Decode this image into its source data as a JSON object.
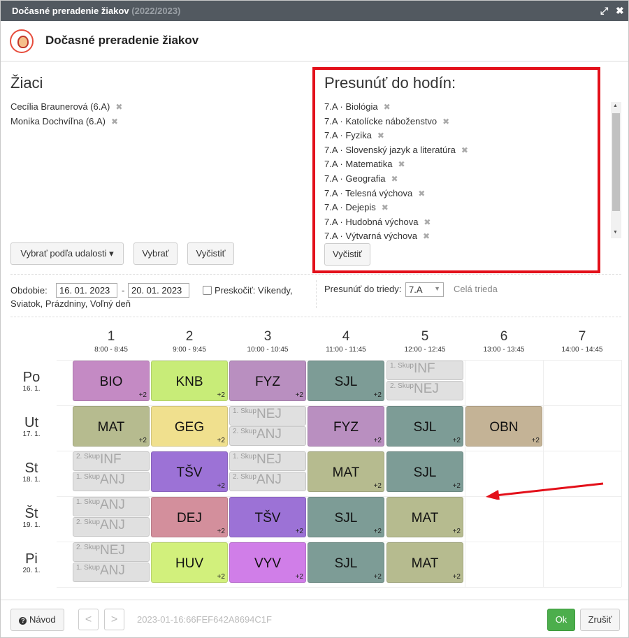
{
  "window": {
    "title": "Dočasné preradenie žiakov",
    "title_year": "(2022/2023)",
    "title_bold": "Dočasné preradenie žiakov"
  },
  "students": {
    "heading": "Žiaci",
    "items": [
      "Cecília Braunerová (6.A)",
      "Monika Dochvíľna (6.A)"
    ]
  },
  "buttons": {
    "choose_by_event": "Vybrať podľa udalosti ▾",
    "choose": "Vybrať",
    "clear": "Vyčistiť",
    "clear_right": "Vyčistiť"
  },
  "target": {
    "heading": "Presunúť do hodín:",
    "items": [
      "7.A · Biológia",
      "7.A · Katolícke náboženstvo",
      "7.A · Fyzika",
      "7.A · Slovenský jazyk a literatúra",
      "7.A · Matematika",
      "7.A · Geografia",
      "7.A · Telesná výchova",
      "7.A · Dejepis",
      "7.A · Hudobná výchova",
      "7.A · Výtvarná výchova"
    ]
  },
  "filters": {
    "period_label": "Obdobie:",
    "date_from": "16. 01. 2023",
    "date_sep": "-",
    "date_to": "20. 01. 2023",
    "skip_label": "Preskočiť: Víkendy,",
    "skip_label2": "Sviatok, Prázdniny, Voľný deň",
    "move_to_class_label": "Presunúť do triedy:",
    "class_value": "7.A",
    "whole_class": "Celá trieda"
  },
  "timetable": {
    "periods": [
      {
        "n": "1",
        "time": "8:00 - 8:45"
      },
      {
        "n": "2",
        "time": "9:00 - 9:45"
      },
      {
        "n": "3",
        "time": "10:00 - 10:45"
      },
      {
        "n": "4",
        "time": "11:00 - 11:45"
      },
      {
        "n": "5",
        "time": "12:00 - 12:45"
      },
      {
        "n": "6",
        "time": "13:00 - 13:45"
      },
      {
        "n": "7",
        "time": "14:00 - 14:45"
      }
    ],
    "days": [
      {
        "d": "Po",
        "date": "16. 1."
      },
      {
        "d": "Ut",
        "date": "17. 1."
      },
      {
        "d": "St",
        "date": "18. 1."
      },
      {
        "d": "Št",
        "date": "19. 1."
      },
      {
        "d": "Pi",
        "date": "20. 1."
      }
    ],
    "plus": "+2",
    "group1": "1. Skup",
    "group2": "2. Skup",
    "cells": {
      "po": [
        "BIO",
        "KNB",
        "FYZ",
        "SJL",
        "INF",
        "NEJ"
      ],
      "ut": [
        "MAT",
        "GEG",
        "NEJ",
        "ANJ",
        "FYZ",
        "SJL",
        "OBN"
      ],
      "st": [
        "INF",
        "ANJ",
        "TŠV",
        "NEJ",
        "ANJ",
        "MAT",
        "SJL"
      ],
      "stv": [
        "ANJ",
        "ANJ",
        "DEJ",
        "TŠV",
        "SJL",
        "MAT"
      ],
      "pi": [
        "NEJ",
        "ANJ",
        "HUV",
        "VYV",
        "SJL",
        "MAT"
      ]
    }
  },
  "footer": {
    "help": "Návod",
    "prev": "<",
    "next": ">",
    "code": "2023-01-16:66FEF642A8694C1F",
    "ok": "Ok",
    "cancel": "Zrušiť"
  },
  "colors": {
    "bio": "#c48ac4",
    "knb": "#c8ec78",
    "fyz": "#b98fc0",
    "sjl": "#7d9c96",
    "mat": "#b6bb8f",
    "geg": "#f0e08e",
    "obn": "#c4b396",
    "tsv": "#9c72d6",
    "dej": "#d38f9c",
    "huv": "#d2f07c",
    "vyv": "#d07ee8",
    "arrow": "#e3101a"
  }
}
